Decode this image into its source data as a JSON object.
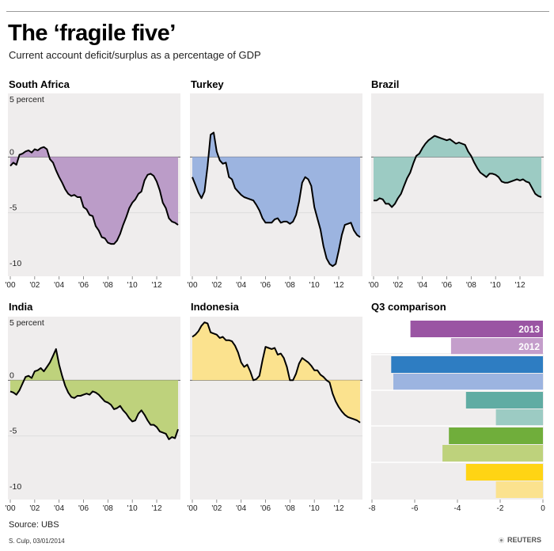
{
  "header": {
    "title": "The ‘fragile five’",
    "subtitle": "Current account deficit/surplus as a percentage of GDP"
  },
  "colors": {
    "south_africa": "#bb9cc8",
    "turkey": "#9cb4e0",
    "brazil": "#9ccbc3",
    "india": "#bed27c",
    "indonesia": "#fbe28e",
    "bar_2013": [
      "#9a55a3",
      "#2e7dc2",
      "#60aca3",
      "#70ae3b",
      "#ffd414"
    ],
    "bar_2012": [
      "#c49ecb",
      "#9cb4e0",
      "#9ccbc3",
      "#bed27c",
      "#fbe28e"
    ],
    "panel_bg": "#efeded",
    "line": "#000000"
  },
  "footer": {
    "source": "Source: UBS",
    "credit": "S. Culp, 03/01/2014",
    "logo_text": "REUTERS"
  },
  "chart_data": [
    {
      "type": "area",
      "title": "South Africa",
      "y_top_label": "5 percent",
      "ylim": [
        -10,
        5
      ],
      "yticks": [
        "0",
        "-5",
        "-10"
      ],
      "xlim": [
        2000,
        2013.75
      ],
      "xticks": [
        "'00",
        "'02",
        "'04",
        "'06",
        "'08",
        "'10",
        "'12"
      ],
      "x": [
        2000,
        2000.25,
        2000.5,
        2000.75,
        2001,
        2001.25,
        2001.5,
        2001.75,
        2002,
        2002.25,
        2002.5,
        2002.75,
        2003,
        2003.25,
        2003.5,
        2003.75,
        2004,
        2004.25,
        2004.5,
        2004.75,
        2005,
        2005.25,
        2005.5,
        2005.75,
        2006,
        2006.25,
        2006.5,
        2006.75,
        2007,
        2007.25,
        2007.5,
        2007.75,
        2008,
        2008.25,
        2008.5,
        2008.75,
        2009,
        2009.25,
        2009.5,
        2009.75,
        2010,
        2010.25,
        2010.5,
        2010.75,
        2011,
        2011.25,
        2011.5,
        2011.75,
        2012,
        2012.25,
        2012.5,
        2012.75,
        2013,
        2013.25,
        2013.5,
        2013.75
      ],
      "values": [
        -0.8,
        -0.5,
        -0.7,
        0.2,
        0.3,
        0.5,
        0.6,
        0.4,
        0.7,
        0.6,
        0.8,
        0.9,
        0.7,
        -0.2,
        -0.5,
        -1.2,
        -1.8,
        -2.3,
        -2.9,
        -3.3,
        -3.5,
        -3.4,
        -3.6,
        -3.6,
        -4.5,
        -4.7,
        -5.2,
        -5.3,
        -6.2,
        -6.6,
        -7.2,
        -7.3,
        -7.7,
        -7.8,
        -7.8,
        -7.5,
        -6.9,
        -6.1,
        -5.4,
        -4.6,
        -4.1,
        -3.8,
        -3.3,
        -3.1,
        -2.1,
        -1.6,
        -1.5,
        -1.7,
        -2.2,
        -3.0,
        -4.1,
        -4.6,
        -5.5,
        -5.8,
        -5.9,
        -6.1
      ]
    },
    {
      "type": "area",
      "title": "Turkey",
      "ylim": [
        -10,
        5
      ],
      "xlim": [
        2000,
        2013.75
      ],
      "xticks": [
        "'00",
        "'02",
        "'04",
        "'06",
        "'08",
        "'10",
        "'12"
      ],
      "x": [
        2000,
        2000.25,
        2000.5,
        2000.75,
        2001,
        2001.25,
        2001.5,
        2001.75,
        2002,
        2002.25,
        2002.5,
        2002.75,
        2003,
        2003.25,
        2003.5,
        2003.75,
        2004,
        2004.25,
        2004.5,
        2004.75,
        2005,
        2005.25,
        2005.5,
        2005.75,
        2006,
        2006.25,
        2006.5,
        2006.75,
        2007,
        2007.25,
        2007.5,
        2007.75,
        2008,
        2008.25,
        2008.5,
        2008.75,
        2009,
        2009.25,
        2009.5,
        2009.75,
        2010,
        2010.25,
        2010.5,
        2010.75,
        2011,
        2011.25,
        2011.5,
        2011.75,
        2012,
        2012.25,
        2012.5,
        2012.75,
        2013,
        2013.25,
        2013.5,
        2013.75
      ],
      "values": [
        -1.8,
        -2.5,
        -3.2,
        -3.7,
        -3.1,
        -0.8,
        2.0,
        2.2,
        0.5,
        -0.3,
        -0.6,
        -0.5,
        -1.8,
        -2.0,
        -2.8,
        -3.1,
        -3.4,
        -3.6,
        -3.7,
        -3.8,
        -3.9,
        -4.3,
        -4.8,
        -5.5,
        -5.9,
        -5.9,
        -5.9,
        -5.6,
        -5.5,
        -5.9,
        -5.8,
        -5.8,
        -6.0,
        -5.8,
        -5.2,
        -4.0,
        -2.3,
        -1.8,
        -2.0,
        -2.6,
        -4.5,
        -5.5,
        -6.5,
        -8.0,
        -9.1,
        -9.6,
        -9.8,
        -9.6,
        -8.4,
        -7.0,
        -6.1,
        -6.0,
        -5.9,
        -6.6,
        -7.0,
        -7.2
      ]
    },
    {
      "type": "area",
      "title": "Brazil",
      "ylim": [
        -10,
        5
      ],
      "xlim": [
        2000,
        2013.75
      ],
      "xticks": [
        "'00",
        "'02",
        "'04",
        "'06",
        "'08",
        "'10",
        "'12"
      ],
      "x": [
        2000,
        2000.25,
        2000.5,
        2000.75,
        2001,
        2001.25,
        2001.5,
        2001.75,
        2002,
        2002.25,
        2002.5,
        2002.75,
        2003,
        2003.25,
        2003.5,
        2003.75,
        2004,
        2004.25,
        2004.5,
        2004.75,
        2005,
        2005.25,
        2005.5,
        2005.75,
        2006,
        2006.25,
        2006.5,
        2006.75,
        2007,
        2007.25,
        2007.5,
        2007.75,
        2008,
        2008.25,
        2008.5,
        2008.75,
        2009,
        2009.25,
        2009.5,
        2009.75,
        2010,
        2010.25,
        2010.5,
        2010.75,
        2011,
        2011.25,
        2011.5,
        2011.75,
        2012,
        2012.25,
        2012.5,
        2012.75,
        2013,
        2013.25,
        2013.5,
        2013.75
      ],
      "values": [
        -3.9,
        -3.9,
        -3.7,
        -3.8,
        -4.2,
        -4.2,
        -4.5,
        -4.2,
        -3.7,
        -3.3,
        -2.6,
        -1.9,
        -1.4,
        -0.6,
        0.1,
        0.3,
        0.8,
        1.2,
        1.5,
        1.7,
        1.9,
        1.8,
        1.7,
        1.6,
        1.5,
        1.6,
        1.4,
        1.2,
        1.3,
        1.2,
        1.1,
        0.5,
        0.1,
        -0.5,
        -1.0,
        -1.4,
        -1.6,
        -1.8,
        -1.5,
        -1.5,
        -1.6,
        -1.8,
        -2.2,
        -2.3,
        -2.3,
        -2.2,
        -2.1,
        -2.0,
        -2.1,
        -2.0,
        -2.2,
        -2.3,
        -2.8,
        -3.3,
        -3.5,
        -3.6
      ]
    },
    {
      "type": "area",
      "title": "India",
      "y_top_label": "5 percent",
      "ylim": [
        -10,
        5
      ],
      "yticks": [
        "0",
        "-5",
        "-10"
      ],
      "xlim": [
        2000,
        2013.75
      ],
      "xticks": [
        "'00",
        "'02",
        "'04",
        "'06",
        "'08",
        "'10",
        "'12"
      ],
      "x": [
        2000,
        2000.25,
        2000.5,
        2000.75,
        2001,
        2001.25,
        2001.5,
        2001.75,
        2002,
        2002.25,
        2002.5,
        2002.75,
        2003,
        2003.25,
        2003.5,
        2003.75,
        2004,
        2004.25,
        2004.5,
        2004.75,
        2005,
        2005.25,
        2005.5,
        2005.75,
        2006,
        2006.25,
        2006.5,
        2006.75,
        2007,
        2007.25,
        2007.5,
        2007.75,
        2008,
        2008.25,
        2008.5,
        2008.75,
        2009,
        2009.25,
        2009.5,
        2009.75,
        2010,
        2010.25,
        2010.5,
        2010.75,
        2011,
        2011.25,
        2011.5,
        2011.75,
        2012,
        2012.25,
        2012.5,
        2012.75,
        2013,
        2013.25,
        2013.5,
        2013.75
      ],
      "values": [
        -1.0,
        -1.1,
        -1.3,
        -0.9,
        -0.3,
        0.3,
        0.4,
        0.2,
        0.8,
        0.9,
        1.1,
        0.8,
        1.2,
        1.6,
        2.2,
        2.8,
        1.4,
        0.4,
        -0.5,
        -1.1,
        -1.5,
        -1.6,
        -1.4,
        -1.4,
        -1.3,
        -1.2,
        -1.3,
        -1.0,
        -1.1,
        -1.3,
        -1.6,
        -1.9,
        -2.0,
        -2.2,
        -2.6,
        -2.5,
        -2.3,
        -2.7,
        -3.0,
        -3.4,
        -3.7,
        -3.6,
        -3.0,
        -2.7,
        -3.1,
        -3.6,
        -4.0,
        -4.0,
        -4.2,
        -4.6,
        -4.7,
        -4.8,
        -5.3,
        -5.1,
        -5.2,
        -4.4
      ]
    },
    {
      "type": "area",
      "title": "Indonesia",
      "ylim": [
        -10,
        5
      ],
      "xlim": [
        2000,
        2013.75
      ],
      "xticks": [
        "'00",
        "'02",
        "'04",
        "'06",
        "'08",
        "'10",
        "'12"
      ],
      "x": [
        2000,
        2000.25,
        2000.5,
        2000.75,
        2001,
        2001.25,
        2001.5,
        2001.75,
        2002,
        2002.25,
        2002.5,
        2002.75,
        2003,
        2003.25,
        2003.5,
        2003.75,
        2004,
        2004.25,
        2004.5,
        2004.75,
        2005,
        2005.25,
        2005.5,
        2005.75,
        2006,
        2006.25,
        2006.5,
        2006.75,
        2007,
        2007.25,
        2007.5,
        2007.75,
        2008,
        2008.25,
        2008.5,
        2008.75,
        2009,
        2009.25,
        2009.5,
        2009.75,
        2010,
        2010.25,
        2010.5,
        2010.75,
        2011,
        2011.25,
        2011.5,
        2011.75,
        2012,
        2012.25,
        2012.5,
        2012.75,
        2013,
        2013.25,
        2013.5,
        2013.75
      ],
      "values": [
        3.9,
        4.1,
        4.4,
        4.9,
        5.2,
        5.1,
        4.3,
        4.2,
        4.1,
        3.8,
        3.9,
        3.6,
        3.6,
        3.5,
        3.1,
        2.5,
        1.6,
        1.2,
        1.4,
        0.8,
        0.0,
        0.1,
        0.4,
        1.8,
        3.0,
        2.9,
        2.8,
        2.9,
        2.3,
        2.4,
        2.0,
        1.2,
        0.0,
        0.0,
        0.6,
        1.5,
        2.0,
        1.8,
        1.6,
        1.3,
        0.9,
        0.9,
        0.5,
        0.3,
        0.0,
        -0.2,
        -1.2,
        -1.9,
        -2.4,
        -2.8,
        -3.1,
        -3.3,
        -3.4,
        -3.5,
        -3.6,
        -3.8
      ]
    },
    {
      "type": "bar",
      "orientation": "horizontal",
      "title": "Q3 comparison",
      "xlim": [
        -8,
        0
      ],
      "xticks": [
        "-8",
        "-6",
        "-4",
        "-2",
        "0"
      ],
      "groups": [
        "South Africa",
        "Turkey",
        "Brazil",
        "India",
        "Indonesia"
      ],
      "series": [
        {
          "name": "2013",
          "values": [
            -6.2,
            -7.1,
            -3.6,
            -4.4,
            -3.6
          ]
        },
        {
          "name": "2012",
          "values": [
            -4.3,
            -7.0,
            -2.2,
            -4.7,
            -2.2
          ]
        }
      ]
    }
  ]
}
